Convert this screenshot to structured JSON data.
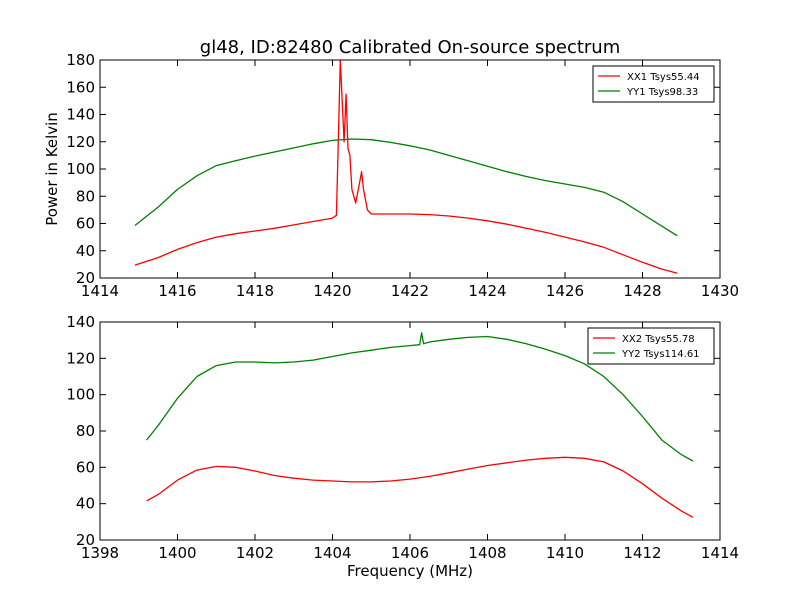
{
  "chart_data": [
    {
      "type": "line",
      "title": "gl48, ID:82480 Calibrated On-source spectrum",
      "xlabel": "",
      "ylabel": "Power in Kelvin",
      "xlim": [
        1414,
        1430
      ],
      "ylim": [
        20,
        180
      ],
      "xticks": [
        1414,
        1416,
        1418,
        1420,
        1422,
        1424,
        1426,
        1428,
        1430
      ],
      "yticks": [
        20,
        40,
        60,
        80,
        100,
        120,
        140,
        160,
        180
      ],
      "grid": false,
      "legend_position": "top-right",
      "series": [
        {
          "name": "XX1 Tsys55.44",
          "color": "#ff0000",
          "x": [
            1414.9,
            1415.5,
            1416.0,
            1416.5,
            1417.0,
            1417.5,
            1418.0,
            1418.5,
            1419.0,
            1419.5,
            1420.0,
            1420.1,
            1420.15,
            1420.2,
            1420.25,
            1420.3,
            1420.35,
            1420.4,
            1420.45,
            1420.5,
            1420.6,
            1420.7,
            1420.75,
            1420.8,
            1420.9,
            1421.0,
            1421.5,
            1422.0,
            1422.5,
            1423.0,
            1423.5,
            1424.0,
            1424.5,
            1425.0,
            1425.5,
            1426.0,
            1426.5,
            1427.0,
            1427.5,
            1428.0,
            1428.5,
            1428.9
          ],
          "y": [
            29.5,
            35,
            41,
            46,
            50,
            52.5,
            54.5,
            56.5,
            59,
            61.5,
            64,
            66,
            120,
            180,
            150,
            120,
            155,
            115,
            110,
            85,
            75,
            90,
            98,
            85,
            70,
            67,
            67,
            67,
            66.5,
            65.5,
            64,
            62,
            59.5,
            56.5,
            53.5,
            50,
            46.5,
            42.5,
            37,
            31.5,
            26.5,
            23.5
          ]
        },
        {
          "name": "YY1 Tsys98.33",
          "color": "#008000",
          "x": [
            1414.9,
            1415.5,
            1416.0,
            1416.5,
            1417.0,
            1417.5,
            1418.0,
            1418.5,
            1419.0,
            1419.5,
            1420.0,
            1420.5,
            1421.0,
            1421.5,
            1422.0,
            1422.5,
            1423.0,
            1423.5,
            1424.0,
            1424.5,
            1425.0,
            1425.5,
            1426.0,
            1426.5,
            1427.0,
            1427.5,
            1428.0,
            1428.5,
            1428.9
          ],
          "y": [
            58.5,
            72,
            85,
            95,
            102.5,
            106,
            109.5,
            112.5,
            115.5,
            118.5,
            121,
            122,
            121.5,
            119.5,
            117,
            114,
            110,
            106,
            102,
            98,
            94.5,
            91.5,
            89,
            86.5,
            83,
            76,
            67,
            58,
            51
          ]
        }
      ]
    },
    {
      "type": "line",
      "title": "",
      "xlabel": "Frequency (MHz)",
      "ylabel": "",
      "xlim": [
        1398,
        1414
      ],
      "ylim": [
        20,
        140
      ],
      "xticks": [
        1398,
        1400,
        1402,
        1404,
        1406,
        1408,
        1410,
        1412,
        1414
      ],
      "yticks": [
        20,
        40,
        60,
        80,
        100,
        120,
        140
      ],
      "grid": false,
      "legend_position": "top-right",
      "series": [
        {
          "name": "XX2 Tsys55.78",
          "color": "#ff0000",
          "x": [
            1399.2,
            1399.5,
            1400.0,
            1400.5,
            1401.0,
            1401.5,
            1402.0,
            1402.5,
            1403.0,
            1403.5,
            1404.0,
            1404.5,
            1405.0,
            1405.5,
            1406.0,
            1406.5,
            1407.0,
            1407.5,
            1408.0,
            1408.5,
            1409.0,
            1409.5,
            1410.0,
            1410.5,
            1411.0,
            1411.5,
            1412.0,
            1412.5,
            1413.0,
            1413.3
          ],
          "y": [
            41.5,
            45,
            53,
            58.5,
            60.5,
            60,
            58,
            55.5,
            54,
            53,
            52.5,
            52,
            52,
            52.5,
            53.5,
            55,
            57,
            59,
            61,
            62.5,
            64,
            65,
            65.5,
            65,
            63,
            58,
            51,
            43,
            36,
            32.5
          ]
        },
        {
          "name": "YY2 Tsys114.61",
          "color": "#008000",
          "x": [
            1399.2,
            1399.5,
            1400.0,
            1400.5,
            1401.0,
            1401.5,
            1402.0,
            1402.5,
            1403.0,
            1403.5,
            1404.0,
            1404.5,
            1405.0,
            1405.5,
            1406.0,
            1406.25,
            1406.3,
            1406.35,
            1406.5,
            1407.0,
            1407.5,
            1408.0,
            1408.5,
            1409.0,
            1409.5,
            1410.0,
            1410.5,
            1411.0,
            1411.5,
            1412.0,
            1412.5,
            1413.0,
            1413.3
          ],
          "y": [
            75,
            83,
            98,
            110,
            116,
            118,
            118,
            117.5,
            118,
            119,
            121,
            123,
            124.5,
            126,
            127,
            127.5,
            134,
            128,
            129,
            130.5,
            131.5,
            132,
            130.5,
            128,
            125,
            121.5,
            117,
            110,
            100,
            88,
            75,
            67,
            63.5
          ]
        }
      ]
    }
  ]
}
